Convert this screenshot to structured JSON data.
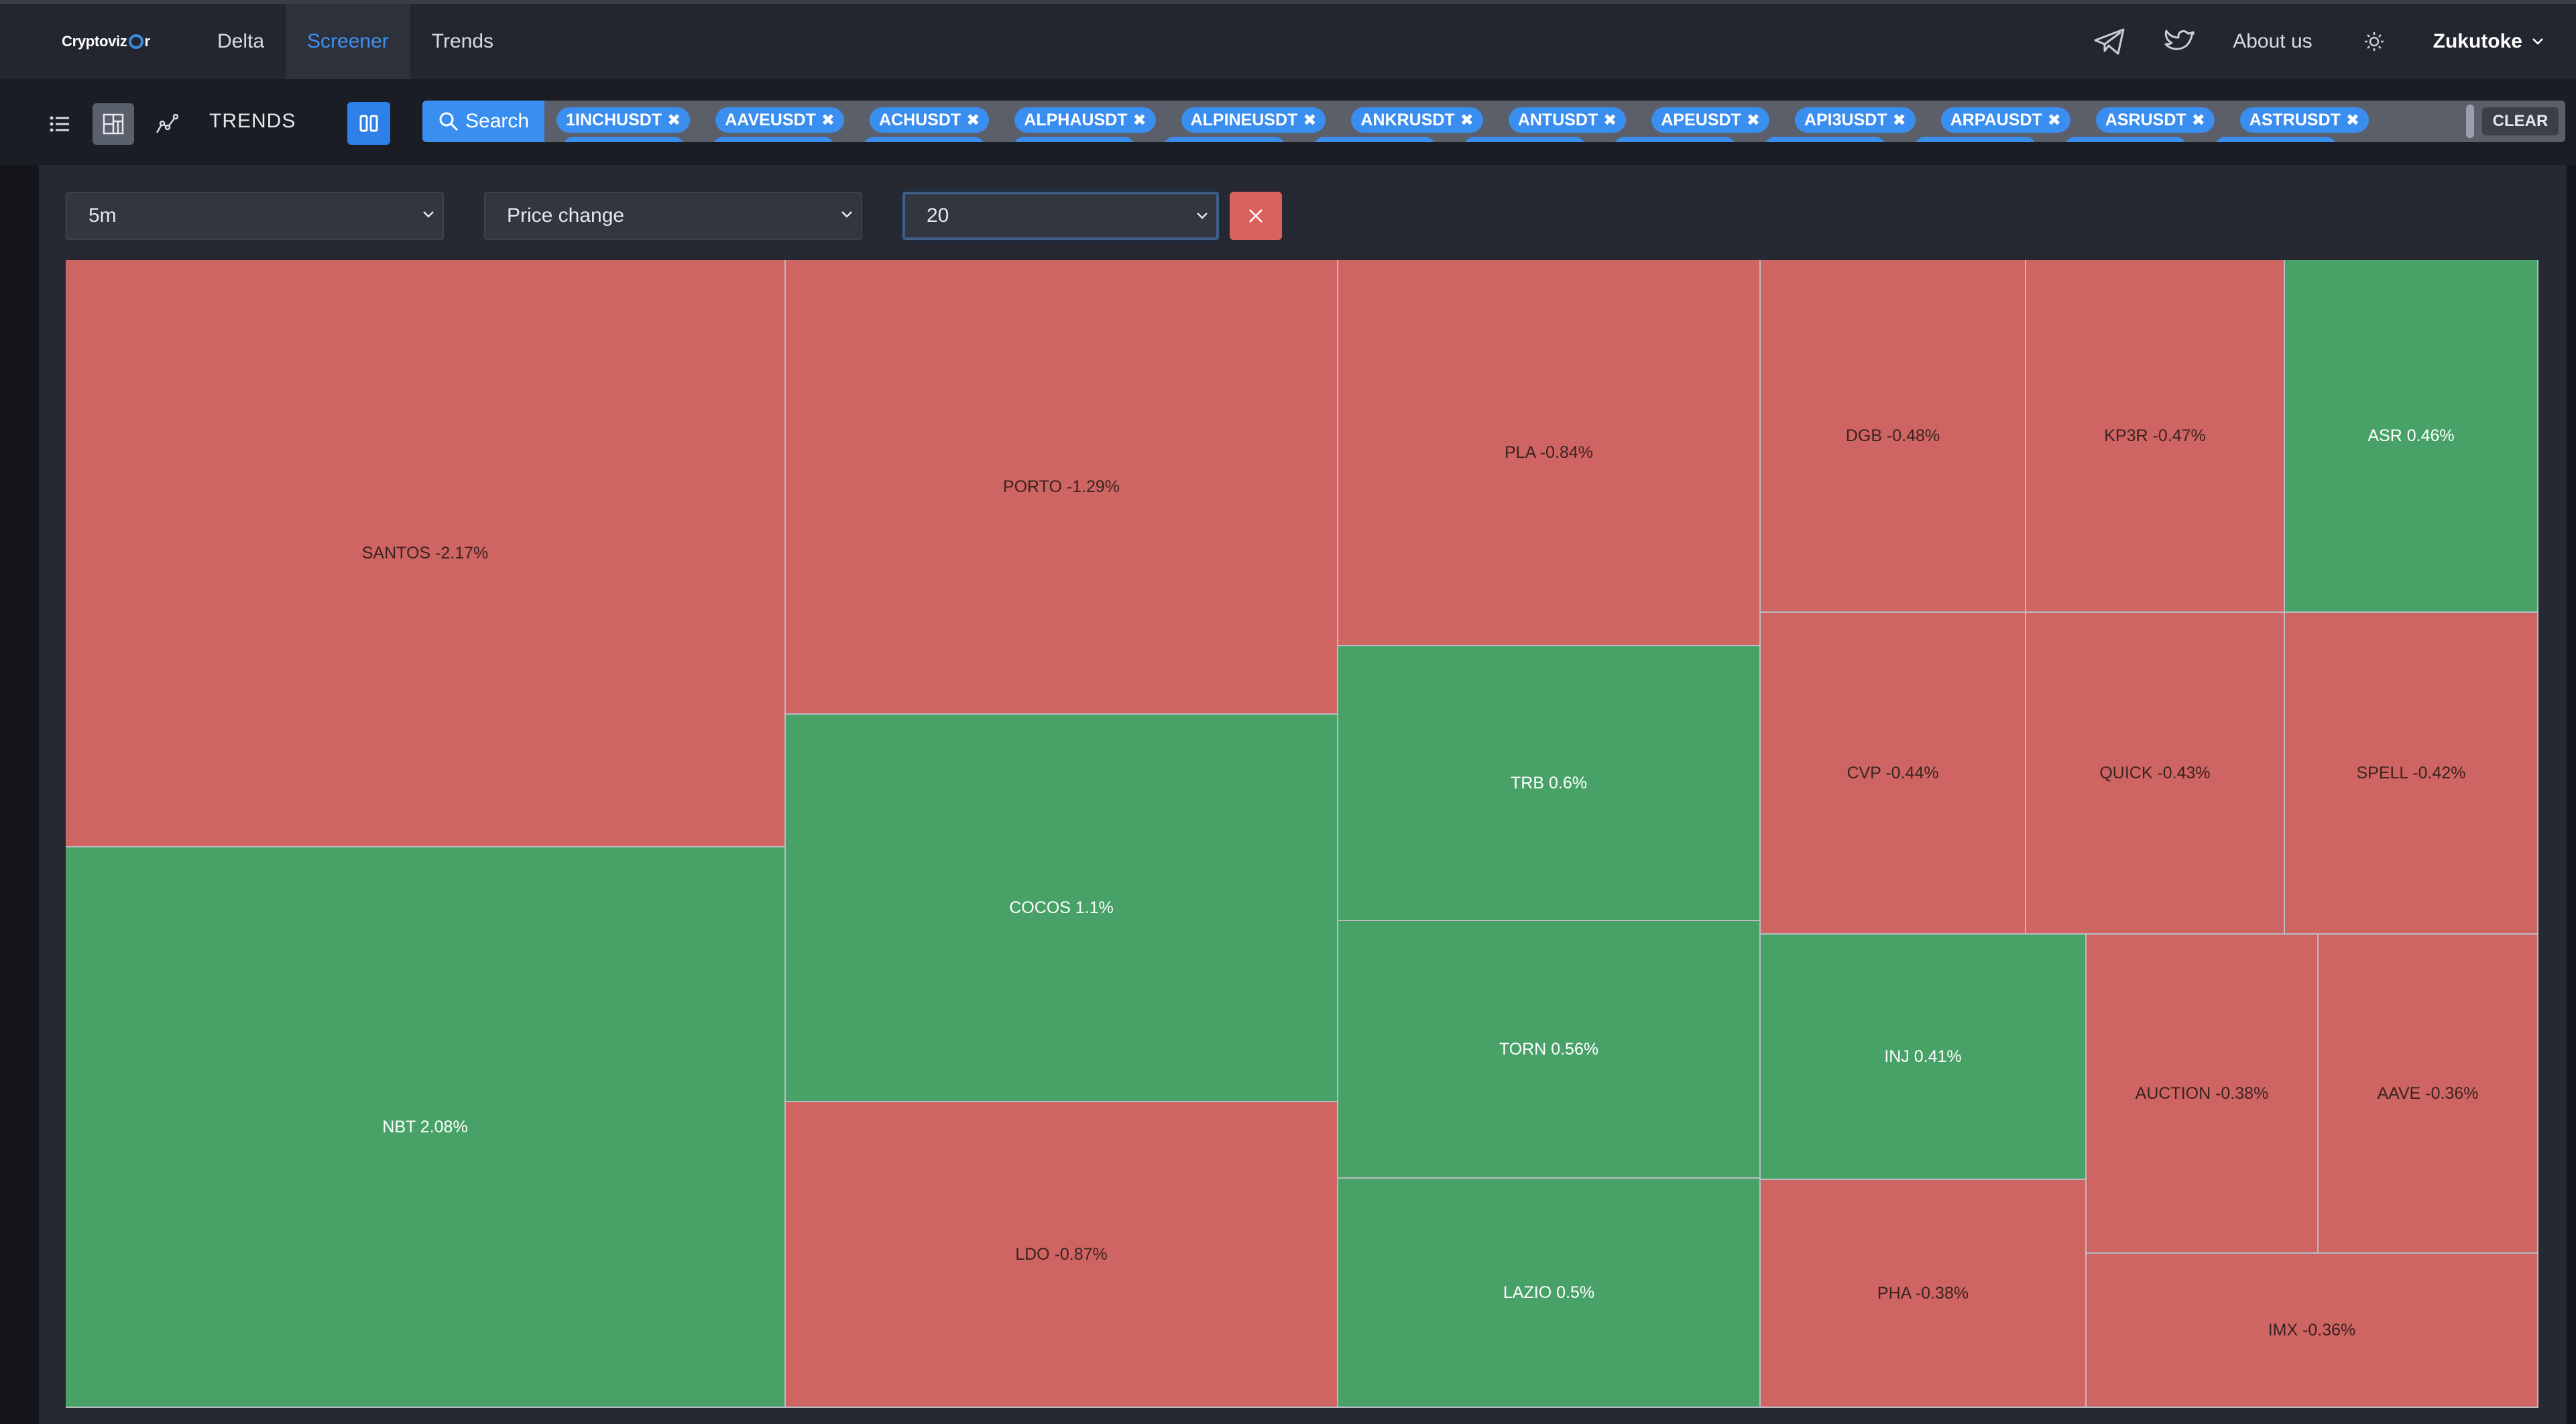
{
  "nav": {
    "logo": "Cryptoviz",
    "logo_suffix": "r",
    "links": [
      "Delta",
      "Screener",
      "Trends"
    ],
    "active_link": "Screener",
    "about": "About us",
    "user": "Zukutoke",
    "icons": [
      "telegram-icon",
      "twitter-icon",
      "sun-icon",
      "chevron-down-icon"
    ]
  },
  "toolbar": {
    "trends_label": "TRENDS",
    "search_label": "Search",
    "clear_label": "CLEAR",
    "chips": [
      "1INCHUSDT",
      "AAVEUSDT",
      "ACHUSDT",
      "ALPHAUSDT",
      "ALPINEUSDT",
      "ANKRUSDT",
      "ANTUSDT",
      "APEUSDT",
      "API3USDT",
      "ARPAUSDT",
      "ASRUSDT",
      "ASTRUSDT"
    ],
    "chip_close": "✖"
  },
  "filters": {
    "interval": "5m",
    "metric": "Price change",
    "count": "20"
  },
  "colors": {
    "negative": "#cf6562",
    "positive": "#48a267",
    "accent": "#3a8ef0"
  },
  "treemap": {
    "tiles": [
      {
        "label": "SANTOS -2.17%",
        "change": -2.17
      },
      {
        "label": "NBT 2.08%",
        "change": 2.08
      },
      {
        "label": "PORTO -1.29%",
        "change": -1.29
      },
      {
        "label": "COCOS 1.1%",
        "change": 1.1
      },
      {
        "label": "LDO -0.87%",
        "change": -0.87
      },
      {
        "label": "PLA -0.84%",
        "change": -0.84
      },
      {
        "label": "TRB 0.6%",
        "change": 0.6
      },
      {
        "label": "TORN 0.56%",
        "change": 0.56
      },
      {
        "label": "LAZIO 0.5%",
        "change": 0.5
      },
      {
        "label": "DGB -0.48%",
        "change": -0.48
      },
      {
        "label": "KP3R -0.47%",
        "change": -0.47
      },
      {
        "label": "ASR 0.46%",
        "change": 0.46
      },
      {
        "label": "CVP -0.44%",
        "change": -0.44
      },
      {
        "label": "QUICK -0.43%",
        "change": -0.43
      },
      {
        "label": "SPELL -0.42%",
        "change": -0.42
      },
      {
        "label": "INJ 0.41%",
        "change": 0.41
      },
      {
        "label": "AUCTION -0.38%",
        "change": -0.38
      },
      {
        "label": "AAVE -0.36%",
        "change": -0.36
      },
      {
        "label": "PHA -0.38%",
        "change": -0.38
      },
      {
        "label": "IMX -0.36%",
        "change": -0.36
      }
    ]
  }
}
